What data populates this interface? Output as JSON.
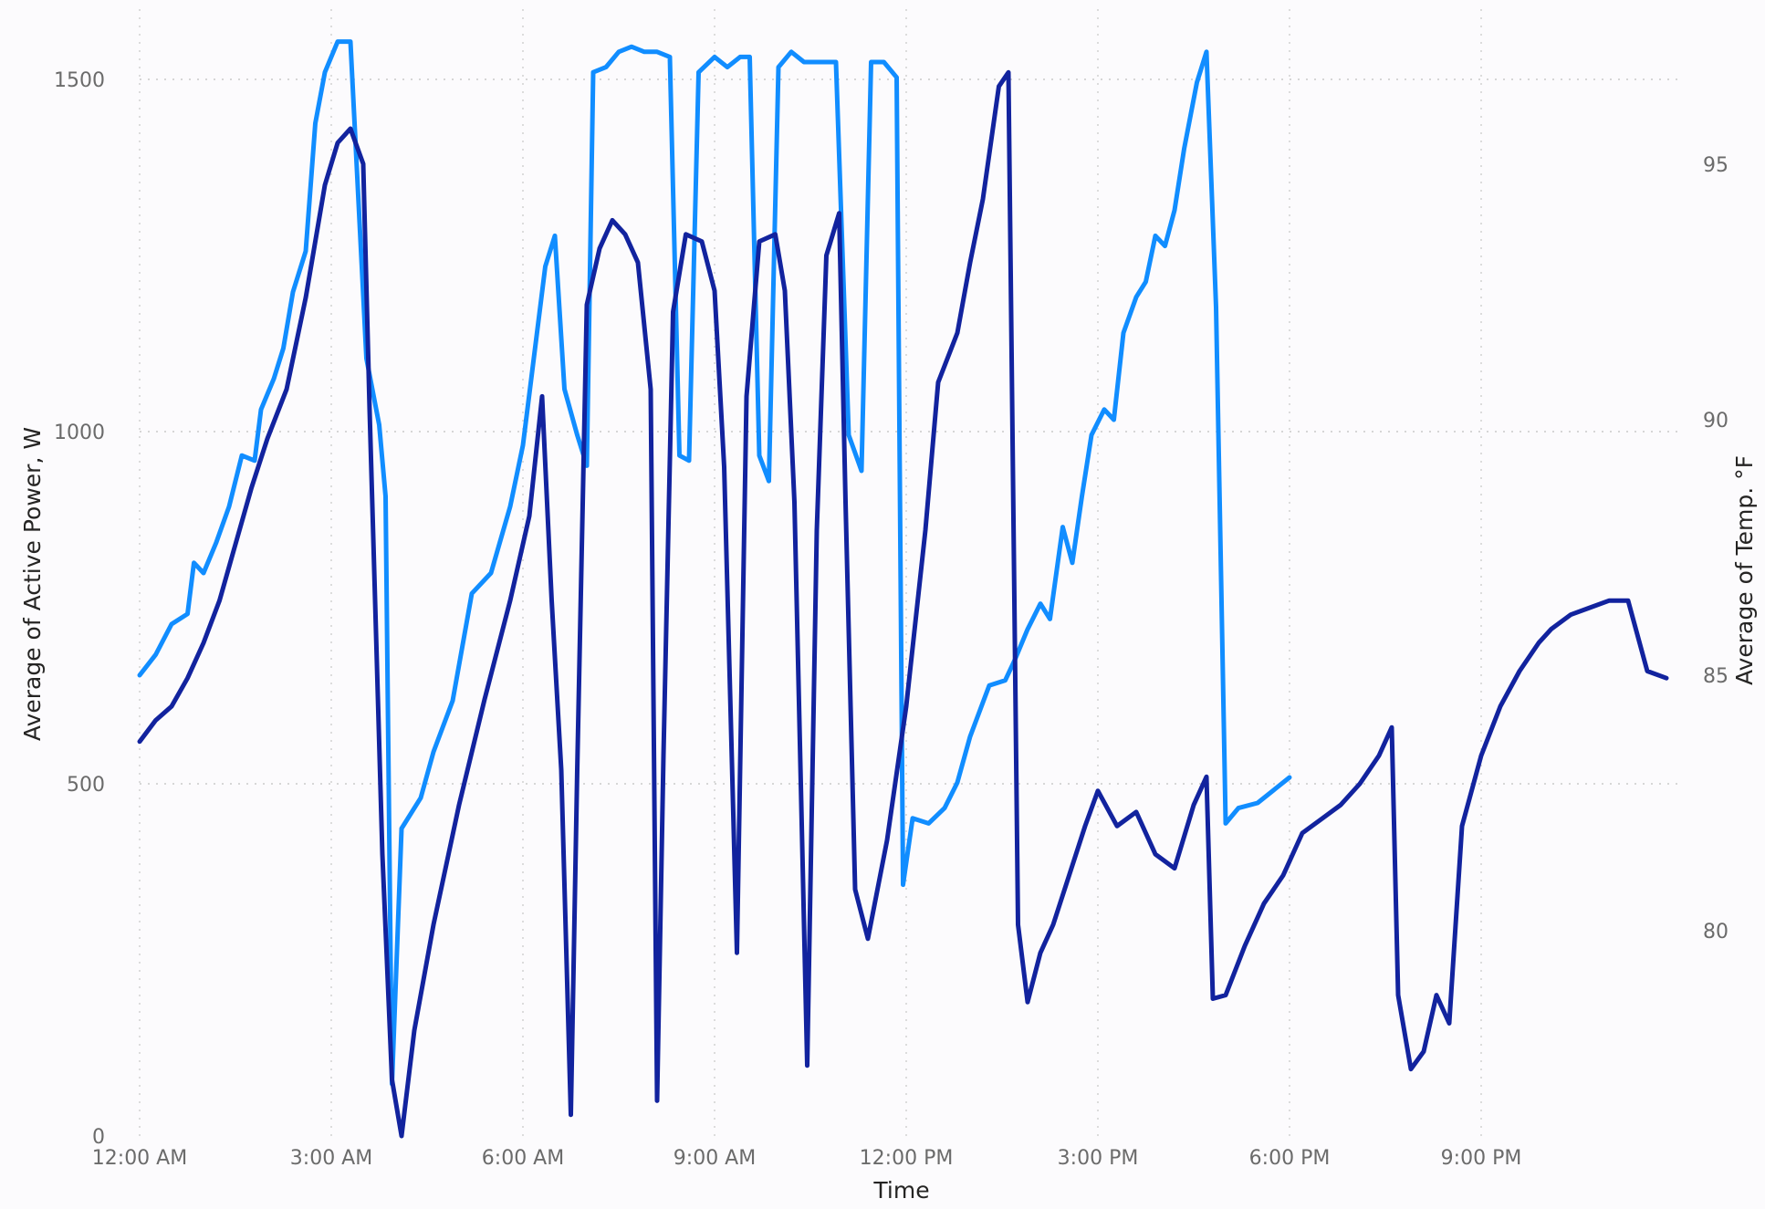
{
  "chart_data": {
    "type": "line",
    "xlabel": "Time",
    "ylabel": "Average of Active Power, W",
    "y2label": "Average of Temp. °F",
    "x_ticks": [
      "12:00 AM",
      "3:00 AM",
      "6:00 AM",
      "9:00 AM",
      "12:00 PM",
      "3:00 PM",
      "6:00 PM",
      "9:00 PM"
    ],
    "x_unit": "hours since 12:00 AM",
    "xlim": [
      0,
      24
    ],
    "y_ticks": [
      0,
      500,
      1000,
      1500
    ],
    "ylim": [
      0,
      1500
    ],
    "y2_ticks": [
      80,
      85,
      90,
      95
    ],
    "y2lim": [
      80,
      95
    ],
    "grid": true,
    "colors": {
      "temperature": "#118dff",
      "power": "#12239e"
    },
    "series": [
      {
        "axis": "right",
        "color": "#118dff",
        "points": [
          [
            0.0,
            85.0
          ],
          [
            0.25,
            85.4
          ],
          [
            0.5,
            86.0
          ],
          [
            0.75,
            86.2
          ],
          [
            0.85,
            87.2
          ],
          [
            1.0,
            87.0
          ],
          [
            1.2,
            87.6
          ],
          [
            1.4,
            88.3
          ],
          [
            1.6,
            89.3
          ],
          [
            1.8,
            89.2
          ],
          [
            1.9,
            90.2
          ],
          [
            2.1,
            90.8
          ],
          [
            2.25,
            91.4
          ],
          [
            2.4,
            92.5
          ],
          [
            2.6,
            93.3
          ],
          [
            2.75,
            95.8
          ],
          [
            2.9,
            96.8
          ],
          [
            3.1,
            97.4
          ],
          [
            3.3,
            97.4
          ],
          [
            3.55,
            91.2
          ],
          [
            3.75,
            89.9
          ],
          [
            3.85,
            88.5
          ],
          [
            3.95,
            77.0
          ],
          [
            4.1,
            82.0
          ],
          [
            4.4,
            82.6
          ],
          [
            4.6,
            83.5
          ],
          [
            4.9,
            84.5
          ],
          [
            5.2,
            86.6
          ],
          [
            5.5,
            87.0
          ],
          [
            5.8,
            88.3
          ],
          [
            6.0,
            89.5
          ],
          [
            6.2,
            91.5
          ],
          [
            6.35,
            93.0
          ],
          [
            6.5,
            93.6
          ],
          [
            6.65,
            90.6
          ],
          [
            6.85,
            89.7
          ],
          [
            7.0,
            89.1
          ],
          [
            7.1,
            96.8
          ],
          [
            7.3,
            96.9
          ],
          [
            7.5,
            97.2
          ],
          [
            7.7,
            97.3
          ],
          [
            7.9,
            97.2
          ],
          [
            8.1,
            97.2
          ],
          [
            8.3,
            97.1
          ],
          [
            8.45,
            89.3
          ],
          [
            8.6,
            89.2
          ],
          [
            8.75,
            96.8
          ],
          [
            9.0,
            97.1
          ],
          [
            9.2,
            96.9
          ],
          [
            9.4,
            97.1
          ],
          [
            9.55,
            97.1
          ],
          [
            9.7,
            89.3
          ],
          [
            9.85,
            88.8
          ],
          [
            10.0,
            96.9
          ],
          [
            10.2,
            97.2
          ],
          [
            10.4,
            97.0
          ],
          [
            10.7,
            97.0
          ],
          [
            10.9,
            97.0
          ],
          [
            11.1,
            89.7
          ],
          [
            11.3,
            89.0
          ],
          [
            11.45,
            97.0
          ],
          [
            11.65,
            97.0
          ],
          [
            11.85,
            96.7
          ],
          [
            11.95,
            80.9
          ],
          [
            12.1,
            82.2
          ],
          [
            12.35,
            82.1
          ],
          [
            12.6,
            82.4
          ],
          [
            12.8,
            82.9
          ],
          [
            13.0,
            83.8
          ],
          [
            13.3,
            84.8
          ],
          [
            13.55,
            84.9
          ],
          [
            13.7,
            85.3
          ],
          [
            13.9,
            85.9
          ],
          [
            14.1,
            86.4
          ],
          [
            14.25,
            86.1
          ],
          [
            14.45,
            87.9
          ],
          [
            14.6,
            87.2
          ],
          [
            14.75,
            88.5
          ],
          [
            14.9,
            89.7
          ],
          [
            15.1,
            90.2
          ],
          [
            15.25,
            90.0
          ],
          [
            15.4,
            91.7
          ],
          [
            15.6,
            92.4
          ],
          [
            15.75,
            92.7
          ],
          [
            15.9,
            93.6
          ],
          [
            16.05,
            93.4
          ],
          [
            16.2,
            94.1
          ],
          [
            16.35,
            95.3
          ],
          [
            16.55,
            96.6
          ],
          [
            16.7,
            97.2
          ],
          [
            16.85,
            92.2
          ],
          [
            17.0,
            82.1
          ],
          [
            17.2,
            82.4
          ],
          [
            17.5,
            82.5
          ],
          [
            17.8,
            82.8
          ],
          [
            18.0,
            83.0
          ]
        ]
      },
      {
        "axis": "left",
        "color": "#12239e",
        "points": [
          [
            0.0,
            560
          ],
          [
            0.25,
            590
          ],
          [
            0.5,
            610
          ],
          [
            0.75,
            650
          ],
          [
            1.0,
            700
          ],
          [
            1.25,
            760
          ],
          [
            1.5,
            840
          ],
          [
            1.75,
            920
          ],
          [
            2.0,
            990
          ],
          [
            2.3,
            1060
          ],
          [
            2.6,
            1190
          ],
          [
            2.9,
            1350
          ],
          [
            3.1,
            1410
          ],
          [
            3.3,
            1430
          ],
          [
            3.5,
            1380
          ],
          [
            3.6,
            1030
          ],
          [
            3.8,
            400
          ],
          [
            3.95,
            80
          ],
          [
            4.1,
            0
          ],
          [
            4.3,
            150
          ],
          [
            4.6,
            300
          ],
          [
            5.0,
            470
          ],
          [
            5.4,
            620
          ],
          [
            5.8,
            760
          ],
          [
            6.1,
            880
          ],
          [
            6.3,
            1050
          ],
          [
            6.45,
            760
          ],
          [
            6.6,
            520
          ],
          [
            6.75,
            30
          ],
          [
            6.85,
            520
          ],
          [
            7.0,
            1180
          ],
          [
            7.2,
            1260
          ],
          [
            7.4,
            1300
          ],
          [
            7.6,
            1280
          ],
          [
            7.8,
            1240
          ],
          [
            8.0,
            1060
          ],
          [
            8.1,
            50
          ],
          [
            8.2,
            540
          ],
          [
            8.35,
            1170
          ],
          [
            8.55,
            1280
          ],
          [
            8.8,
            1270
          ],
          [
            9.0,
            1200
          ],
          [
            9.15,
            950
          ],
          [
            9.35,
            260
          ],
          [
            9.5,
            1050
          ],
          [
            9.7,
            1270
          ],
          [
            9.95,
            1280
          ],
          [
            10.1,
            1200
          ],
          [
            10.25,
            900
          ],
          [
            10.45,
            100
          ],
          [
            10.6,
            860
          ],
          [
            10.75,
            1250
          ],
          [
            10.95,
            1310
          ],
          [
            11.05,
            900
          ],
          [
            11.2,
            350
          ],
          [
            11.4,
            280
          ],
          [
            11.7,
            420
          ],
          [
            12.0,
            610
          ],
          [
            12.3,
            860
          ],
          [
            12.5,
            1070
          ],
          [
            12.8,
            1140
          ],
          [
            13.0,
            1240
          ],
          [
            13.2,
            1330
          ],
          [
            13.45,
            1490
          ],
          [
            13.6,
            1510
          ],
          [
            13.75,
            300
          ],
          [
            13.9,
            190
          ],
          [
            14.1,
            260
          ],
          [
            14.3,
            300
          ],
          [
            14.55,
            370
          ],
          [
            14.8,
            440
          ],
          [
            15.0,
            490
          ],
          [
            15.3,
            440
          ],
          [
            15.6,
            460
          ],
          [
            15.9,
            400
          ],
          [
            16.2,
            380
          ],
          [
            16.5,
            470
          ],
          [
            16.7,
            510
          ],
          [
            16.8,
            195
          ],
          [
            17.0,
            200
          ],
          [
            17.3,
            270
          ],
          [
            17.6,
            330
          ],
          [
            17.9,
            370
          ],
          [
            18.2,
            430
          ],
          [
            18.5,
            450
          ],
          [
            18.8,
            470
          ],
          [
            19.1,
            500
          ],
          [
            19.4,
            540
          ],
          [
            19.6,
            580
          ],
          [
            19.7,
            200
          ],
          [
            19.9,
            95
          ],
          [
            20.1,
            120
          ],
          [
            20.3,
            200
          ],
          [
            20.5,
            160
          ],
          [
            20.7,
            440
          ],
          [
            21.0,
            540
          ],
          [
            21.3,
            610
          ],
          [
            21.6,
            660
          ],
          [
            21.9,
            700
          ],
          [
            22.1,
            720
          ],
          [
            22.4,
            740
          ],
          [
            22.7,
            750
          ],
          [
            23.0,
            760
          ],
          [
            23.3,
            760
          ],
          [
            23.6,
            660
          ],
          [
            23.9,
            650
          ]
        ]
      }
    ]
  }
}
